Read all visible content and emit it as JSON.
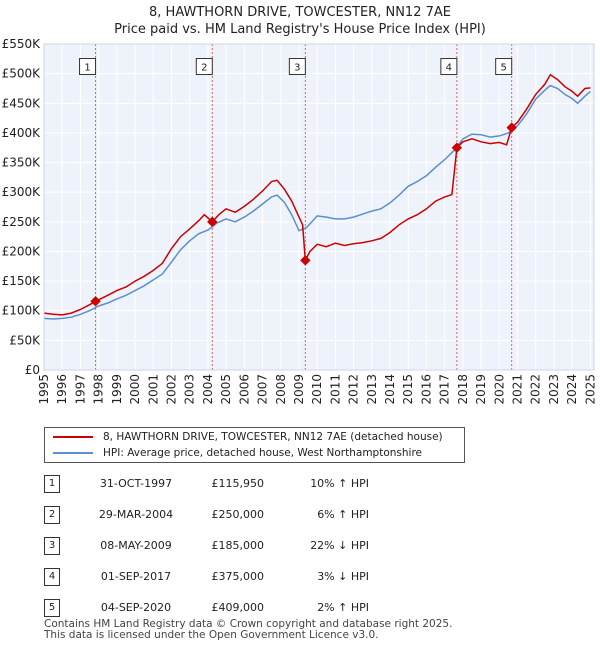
{
  "title": "8, HAWTHORN DRIVE, TOWCESTER, NN12 7AE",
  "subtitle": "Price paid vs. HM Land Registry's House Price Index (HPI)",
  "chart_data": {
    "type": "line",
    "title": "8, HAWTHORN DRIVE, TOWCESTER, NN12 7AE",
    "subtitle": "Price paid vs. HM Land Registry's House Price Index (HPI)",
    "xlabel": "",
    "ylabel": "",
    "xlim": [
      1995,
      2025.2
    ],
    "ylim": [
      0,
      550000
    ],
    "x_ticks": [
      "1995",
      "1996",
      "1997",
      "1998",
      "1999",
      "2000",
      "2001",
      "2002",
      "2003",
      "2004",
      "2005",
      "2006",
      "2007",
      "2008",
      "2009",
      "2010",
      "2011",
      "2012",
      "2013",
      "2014",
      "2015",
      "2016",
      "2017",
      "2018",
      "2019",
      "2020",
      "2021",
      "2022",
      "2023",
      "2024",
      "2025"
    ],
    "y_ticks": [
      {
        "value": 0,
        "label": "£0"
      },
      {
        "value": 50000,
        "label": "£50K"
      },
      {
        "value": 100000,
        "label": "£100K"
      },
      {
        "value": 150000,
        "label": "£150K"
      },
      {
        "value": 200000,
        "label": "£200K"
      },
      {
        "value": 250000,
        "label": "£250K"
      },
      {
        "value": 300000,
        "label": "£300K"
      },
      {
        "value": 350000,
        "label": "£350K"
      },
      {
        "value": 400000,
        "label": "£400K"
      },
      {
        "value": 450000,
        "label": "£450K"
      },
      {
        "value": 500000,
        "label": "£500K"
      },
      {
        "value": 550000,
        "label": "£550K"
      }
    ],
    "grid": true,
    "series": [
      {
        "name": "8, HAWTHORN DRIVE, TOWCESTER, NN12 7AE (detached house)",
        "color": "#cc0000",
        "points": [
          [
            1995.0,
            96000
          ],
          [
            1995.5,
            94000
          ],
          [
            1996.0,
            93000
          ],
          [
            1996.5,
            96000
          ],
          [
            1997.0,
            102000
          ],
          [
            1997.5,
            110000
          ],
          [
            1997.83,
            115950
          ],
          [
            1998.5,
            126000
          ],
          [
            1999.0,
            134000
          ],
          [
            1999.5,
            140000
          ],
          [
            2000.0,
            150000
          ],
          [
            2000.5,
            158000
          ],
          [
            2001.0,
            168000
          ],
          [
            2001.5,
            180000
          ],
          [
            2002.0,
            205000
          ],
          [
            2002.5,
            225000
          ],
          [
            2003.0,
            238000
          ],
          [
            2003.5,
            252000
          ],
          [
            2003.8,
            262000
          ],
          [
            2004.24,
            250000
          ],
          [
            2004.6,
            262000
          ],
          [
            2005.0,
            272000
          ],
          [
            2005.5,
            266000
          ],
          [
            2006.0,
            276000
          ],
          [
            2006.5,
            288000
          ],
          [
            2007.0,
            302000
          ],
          [
            2007.5,
            318000
          ],
          [
            2007.8,
            320000
          ],
          [
            2008.2,
            305000
          ],
          [
            2008.6,
            285000
          ],
          [
            2008.9,
            265000
          ],
          [
            2009.2,
            245000
          ],
          [
            2009.35,
            185000
          ],
          [
            2009.6,
            200000
          ],
          [
            2010.0,
            212000
          ],
          [
            2010.5,
            208000
          ],
          [
            2011.0,
            214000
          ],
          [
            2011.5,
            210000
          ],
          [
            2012.0,
            213000
          ],
          [
            2012.5,
            215000
          ],
          [
            2013.0,
            218000
          ],
          [
            2013.5,
            222000
          ],
          [
            2014.0,
            232000
          ],
          [
            2014.5,
            245000
          ],
          [
            2015.0,
            255000
          ],
          [
            2015.5,
            262000
          ],
          [
            2016.0,
            272000
          ],
          [
            2016.5,
            285000
          ],
          [
            2017.0,
            292000
          ],
          [
            2017.4,
            296000
          ],
          [
            2017.67,
            375000
          ],
          [
            2018.0,
            385000
          ],
          [
            2018.5,
            390000
          ],
          [
            2019.0,
            385000
          ],
          [
            2019.5,
            382000
          ],
          [
            2020.0,
            384000
          ],
          [
            2020.4,
            380000
          ],
          [
            2020.68,
            409000
          ],
          [
            2021.0,
            418000
          ],
          [
            2021.5,
            440000
          ],
          [
            2022.0,
            465000
          ],
          [
            2022.5,
            482000
          ],
          [
            2022.8,
            498000
          ],
          [
            2023.2,
            490000
          ],
          [
            2023.6,
            478000
          ],
          [
            2024.0,
            470000
          ],
          [
            2024.3,
            462000
          ],
          [
            2024.7,
            475000
          ],
          [
            2025.0,
            476000
          ]
        ]
      },
      {
        "name": "HPI: Average price, detached house, West Northamptonshire",
        "color": "#5b8fd0",
        "points": [
          [
            1995.0,
            87000
          ],
          [
            1995.5,
            86000
          ],
          [
            1996.0,
            87000
          ],
          [
            1996.5,
            89000
          ],
          [
            1997.0,
            94000
          ],
          [
            1997.5,
            100000
          ],
          [
            1998.0,
            108000
          ],
          [
            1998.5,
            113000
          ],
          [
            1999.0,
            120000
          ],
          [
            1999.5,
            126000
          ],
          [
            2000.0,
            134000
          ],
          [
            2000.5,
            142000
          ],
          [
            2001.0,
            152000
          ],
          [
            2001.5,
            162000
          ],
          [
            2002.0,
            182000
          ],
          [
            2002.5,
            203000
          ],
          [
            2003.0,
            218000
          ],
          [
            2003.5,
            230000
          ],
          [
            2004.0,
            236000
          ],
          [
            2004.5,
            248000
          ],
          [
            2005.0,
            255000
          ],
          [
            2005.5,
            250000
          ],
          [
            2006.0,
            258000
          ],
          [
            2006.5,
            268000
          ],
          [
            2007.0,
            280000
          ],
          [
            2007.5,
            292000
          ],
          [
            2007.8,
            295000
          ],
          [
            2008.2,
            283000
          ],
          [
            2008.6,
            262000
          ],
          [
            2009.0,
            235000
          ],
          [
            2009.4,
            240000
          ],
          [
            2009.8,
            253000
          ],
          [
            2010.0,
            260000
          ],
          [
            2010.5,
            258000
          ],
          [
            2011.0,
            255000
          ],
          [
            2011.5,
            255000
          ],
          [
            2012.0,
            258000
          ],
          [
            2012.5,
            263000
          ],
          [
            2013.0,
            268000
          ],
          [
            2013.5,
            272000
          ],
          [
            2014.0,
            282000
          ],
          [
            2014.5,
            295000
          ],
          [
            2015.0,
            310000
          ],
          [
            2015.5,
            318000
          ],
          [
            2016.0,
            328000
          ],
          [
            2016.5,
            342000
          ],
          [
            2017.0,
            355000
          ],
          [
            2017.5,
            370000
          ],
          [
            2018.0,
            390000
          ],
          [
            2018.5,
            398000
          ],
          [
            2019.0,
            397000
          ],
          [
            2019.5,
            393000
          ],
          [
            2020.0,
            395000
          ],
          [
            2020.5,
            400000
          ],
          [
            2021.0,
            412000
          ],
          [
            2021.5,
            432000
          ],
          [
            2022.0,
            457000
          ],
          [
            2022.5,
            472000
          ],
          [
            2022.8,
            480000
          ],
          [
            2023.2,
            475000
          ],
          [
            2023.6,
            465000
          ],
          [
            2024.0,
            458000
          ],
          [
            2024.3,
            450000
          ],
          [
            2024.7,
            462000
          ],
          [
            2025.0,
            470000
          ]
        ]
      }
    ],
    "sales": [
      {
        "id": "1",
        "x": 1997.83,
        "price": 115950
      },
      {
        "id": "2",
        "x": 2004.24,
        "price": 250000
      },
      {
        "id": "3",
        "x": 2009.35,
        "price": 185000
      },
      {
        "id": "4",
        "x": 2017.67,
        "price": 375000
      },
      {
        "id": "5",
        "x": 2020.68,
        "price": 409000
      }
    ],
    "marker_label_value": 512000
  },
  "legend": {
    "property": "8, HAWTHORN DRIVE, TOWCESTER, NN12 7AE (detached house)",
    "hpi": "HPI: Average price, detached house, West Northamptonshire"
  },
  "transactions": [
    {
      "num": "1",
      "date": "31-OCT-1997",
      "price": "£115,950",
      "hpi": "10% ↑ HPI"
    },
    {
      "num": "2",
      "date": "29-MAR-2004",
      "price": "£250,000",
      "hpi": "6% ↑ HPI"
    },
    {
      "num": "3",
      "date": "08-MAY-2009",
      "price": "£185,000",
      "hpi": "22% ↓ HPI"
    },
    {
      "num": "4",
      "date": "01-SEP-2017",
      "price": "£375,000",
      "hpi": "3% ↓ HPI"
    },
    {
      "num": "5",
      "date": "04-SEP-2020",
      "price": "£409,000",
      "hpi": "2% ↑ HPI"
    }
  ],
  "footer": {
    "line1": "Contains HM Land Registry data © Crown copyright and database right 2025.",
    "line2": "This data is licensed under the Open Government Licence v3.0."
  }
}
